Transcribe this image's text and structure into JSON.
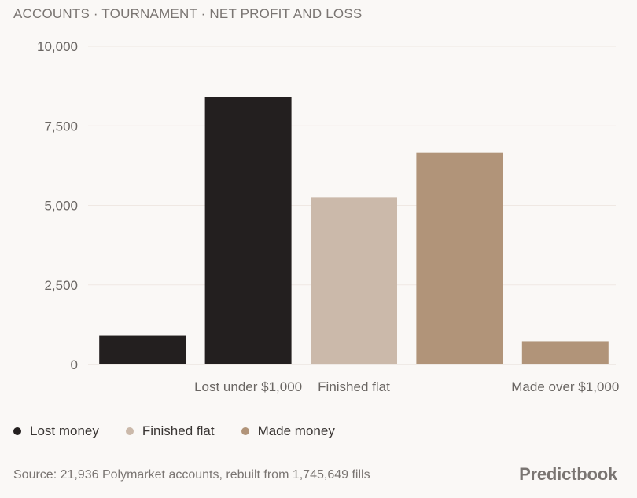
{
  "title": "ACCOUNTS · TOURNAMENT · NET PROFIT AND LOSS",
  "chart_data": {
    "type": "bar",
    "categories": [
      "",
      "Lost under $1,000",
      "Finished flat",
      "",
      "Made over $1,000"
    ],
    "values": [
      900,
      8400,
      5250,
      6650,
      730
    ],
    "bar_colors": [
      "#231f1f",
      "#231f1f",
      "#cbb9aa",
      "#b19479",
      "#b19479"
    ],
    "ylim": [
      0,
      10000
    ],
    "y_ticks": [
      0,
      2500,
      5000,
      7500,
      10000
    ],
    "y_tick_labels": [
      "0",
      "2,500",
      "5,000",
      "7,500",
      "10,000"
    ],
    "grid": true,
    "xlabel": "",
    "ylabel": ""
  },
  "legend": [
    {
      "label": "Lost money",
      "color": "#231f1f"
    },
    {
      "label": "Finished flat",
      "color": "#cbb9aa"
    },
    {
      "label": "Made money",
      "color": "#b19479"
    }
  ],
  "source": "Source: 21,936 Polymarket accounts, rebuilt from 1,745,649 fills",
  "brand": "Predictbook"
}
